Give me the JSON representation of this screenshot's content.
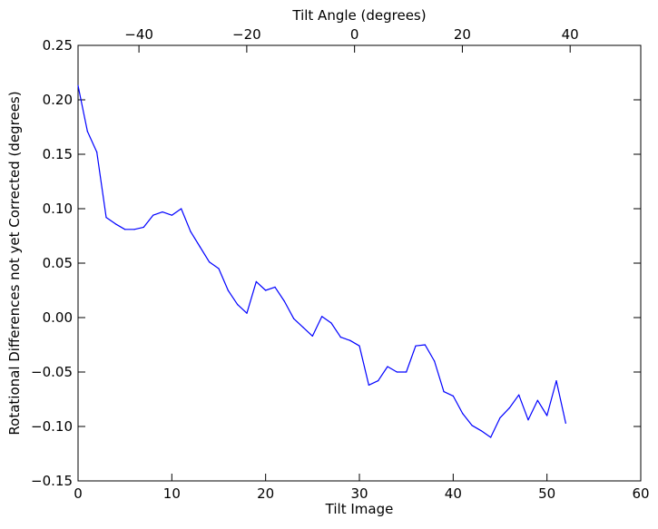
{
  "chart_data": {
    "type": "line",
    "title": "",
    "xlabel": "Tilt Image",
    "ylabel": "Rotational Differences not yet Corrected (degrees)",
    "top_xlabel": "Tilt Angle (degrees)",
    "xlim": [
      0,
      60
    ],
    "ylim": [
      -0.15,
      0.25
    ],
    "top_xlim": [
      -51.3,
      53.1
    ],
    "x_ticks": [
      0,
      10,
      20,
      30,
      40,
      50,
      60
    ],
    "x_tick_labels": [
      "0",
      "10",
      "20",
      "30",
      "40",
      "50",
      "60"
    ],
    "y_ticks": [
      0.25,
      0.2,
      0.15,
      0.1,
      0.05,
      0.0,
      -0.05,
      -0.1,
      -0.15
    ],
    "y_tick_labels": [
      "0.25",
      "0.20",
      "0.15",
      "0.10",
      "0.05",
      "0.00",
      "−0.05",
      "−0.10",
      "−0.15"
    ],
    "top_x_ticks": [
      -40,
      -20,
      0,
      20,
      40
    ],
    "top_x_tick_labels": [
      "−40",
      "−20",
      "0",
      "20",
      "40"
    ],
    "grid": false,
    "line_color": "#0000ff",
    "series": [
      {
        "x": [
          0,
          1,
          2,
          3,
          4,
          5,
          6,
          7,
          8,
          9,
          10,
          11,
          12,
          13,
          14,
          15,
          16,
          17,
          18,
          19,
          20,
          21,
          22,
          23,
          24,
          25,
          26,
          27,
          28,
          29,
          30,
          31,
          32,
          33,
          34,
          35,
          36,
          37,
          38,
          39,
          40,
          41,
          42,
          43,
          44,
          45,
          46,
          47,
          48,
          49,
          50,
          51,
          52
        ],
        "values": [
          0.213,
          0.171,
          0.152,
          0.092,
          0.086,
          0.081,
          0.081,
          0.083,
          0.094,
          0.097,
          0.094,
          0.1,
          0.079,
          0.065,
          0.051,
          0.045,
          0.025,
          0.012,
          0.004,
          0.033,
          0.025,
          0.028,
          0.015,
          -0.001,
          -0.009,
          -0.017,
          0.001,
          -0.005,
          -0.018,
          -0.021,
          -0.026,
          -0.062,
          -0.058,
          -0.045,
          -0.05,
          -0.05,
          -0.026,
          -0.025,
          -0.04,
          -0.068,
          -0.072,
          -0.088,
          -0.099,
          -0.104,
          -0.11,
          -0.092,
          -0.083,
          -0.071,
          -0.094,
          -0.076,
          -0.09,
          -0.058,
          -0.097
        ]
      }
    ]
  }
}
